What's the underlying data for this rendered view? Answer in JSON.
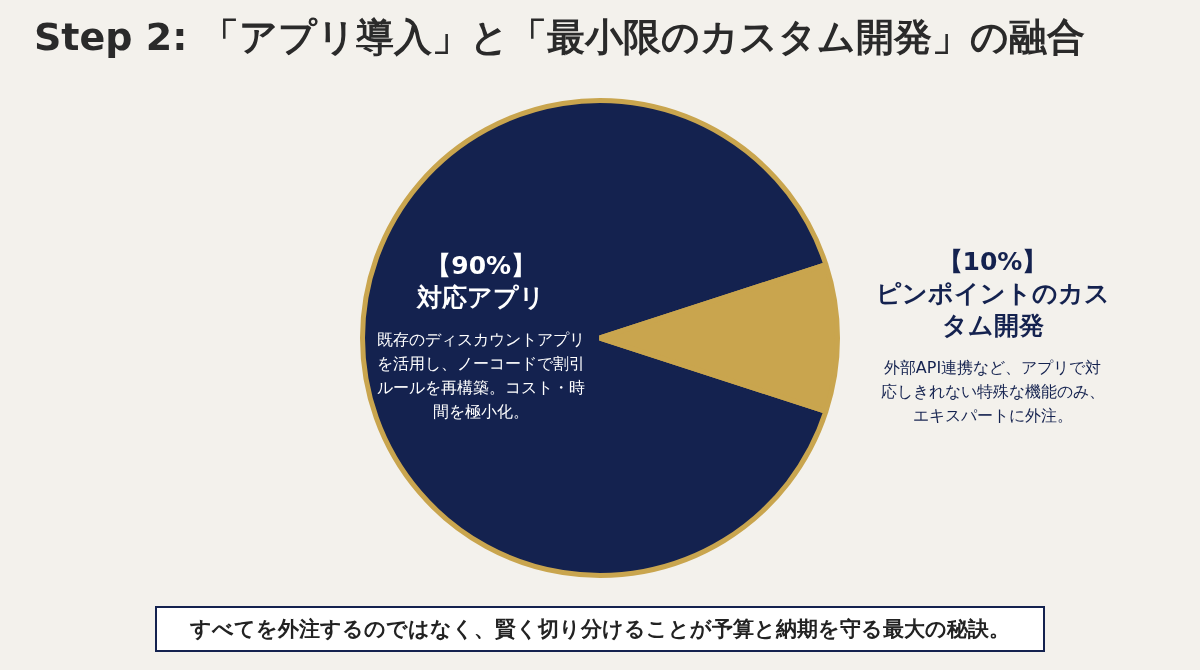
{
  "chart_data": {
    "type": "pie",
    "title": "Step 2: 「アプリ導入」と「最小限のカスタム開発」の融合",
    "categories": [
      "対応アプリ",
      "ピンポイントのカスタム開発"
    ],
    "values": [
      90,
      10
    ],
    "colors": [
      "#14224f",
      "#c9a54e"
    ],
    "value_labels": [
      "【90%】",
      "【10%】"
    ],
    "legend": false,
    "annotations": [
      "既存のディスカウントアプリを活用し、ノーコードで割引ルールを再構築。コスト・時間を極小化。",
      "外部API連携など、アプリで対応しきれない特殊な機能のみ、エキスパートに外注。",
      "すべてを外注するのではなく、賢く切り分けることが予算と納期を守る最大の秘訣。"
    ]
  }
}
